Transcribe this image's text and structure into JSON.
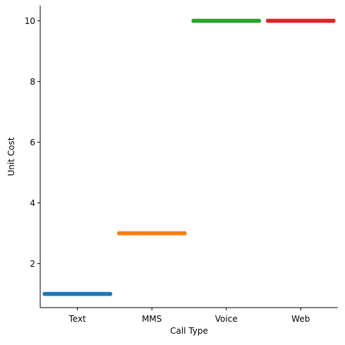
{
  "chart_data": {
    "type": "scatter",
    "style": "strip plot (swarm-like, points spread horizontally within each category)",
    "xlabel": "Call Type",
    "ylabel": "Unit Cost",
    "ylim": [
      0.55,
      10.5
    ],
    "yticks": [
      2,
      4,
      6,
      8,
      10
    ],
    "grid": false,
    "legend": "none",
    "categories": [
      "Text",
      "MMS",
      "Voice",
      "Web"
    ],
    "series": [
      {
        "category": "Text",
        "value": 1,
        "count": 40,
        "color": "#1f77b4"
      },
      {
        "category": "MMS",
        "value": 3,
        "count": 40,
        "color": "#ff7f0e"
      },
      {
        "category": "Voice",
        "value": 10,
        "count": 40,
        "color": "#2ca02c"
      },
      {
        "category": "Web",
        "value": 10,
        "count": 40,
        "color": "#d62728"
      }
    ]
  }
}
